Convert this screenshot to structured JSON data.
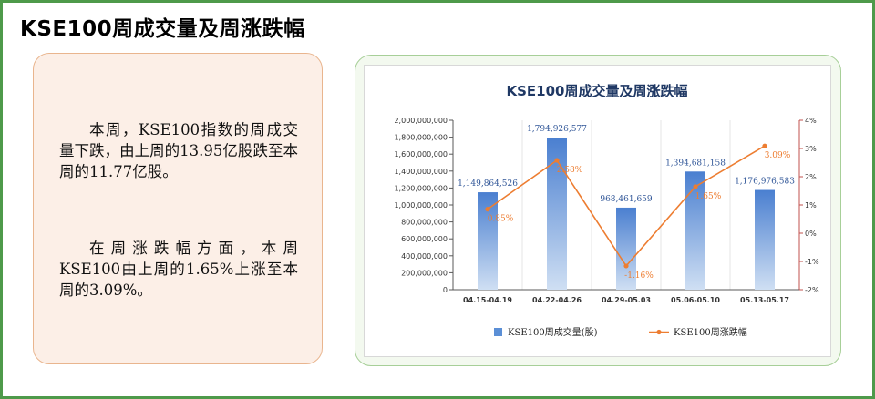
{
  "page": {
    "title": "KSE100周成交量及周涨跌幅"
  },
  "summary": {
    "paragraph1": "本周，KSE100指数的周成交量下跌，由上周的13.95亿股跌至本周的11.77亿股。",
    "paragraph2": "在周涨跌幅方面，本周KSE100由上周的1.65%上涨至本周的3.09%。"
  },
  "colors": {
    "frame": "#4e9a4a",
    "bar": "#5b8fd6",
    "line": "#ed7d31",
    "text_card_bg": "#fcefe7",
    "chart_card_bg": "#f3f9ef"
  },
  "chart_data": {
    "type": "bar",
    "title": "KSE100周成交量及周涨跌幅",
    "categories": [
      "04.15-04.19",
      "04.22-04.26",
      "04.29-05.03",
      "05.06-05.10",
      "05.13-05.17"
    ],
    "series": [
      {
        "name": "KSE100周成交量(股)",
        "type": "bar",
        "axis": "left",
        "values": [
          1149864526,
          1794926577,
          968461659,
          1394681158,
          1176976583
        ],
        "labels": [
          "1,149,864,526",
          "1,794,926,577",
          "968,461,659",
          "1,394,681,158",
          "1,176,976,583"
        ]
      },
      {
        "name": "KSE100周涨跌幅",
        "type": "line",
        "axis": "right",
        "values": [
          0.85,
          2.58,
          -1.16,
          1.65,
          3.09
        ],
        "labels": [
          "0.85%",
          "2.58%",
          "-1.16%",
          "1.65%",
          "3.09%"
        ]
      }
    ],
    "y_left": {
      "min": 0,
      "max": 2000000000,
      "step": 200000000,
      "tick_labels": [
        "0",
        "200,000,000",
        "400,000,000",
        "600,000,000",
        "800,000,000",
        "1,000,000,000",
        "1,200,000,000",
        "1,400,000,000",
        "1,600,000,000",
        "1,800,000,000",
        "2,000,000,000"
      ]
    },
    "y_right": {
      "min": -2,
      "max": 4,
      "step": 1,
      "tick_labels": [
        "-2%",
        "-1%",
        "0%",
        "1%",
        "2%",
        "3%",
        "4%"
      ]
    },
    "legend_position": "bottom",
    "grid": "vertical-category-bands"
  }
}
